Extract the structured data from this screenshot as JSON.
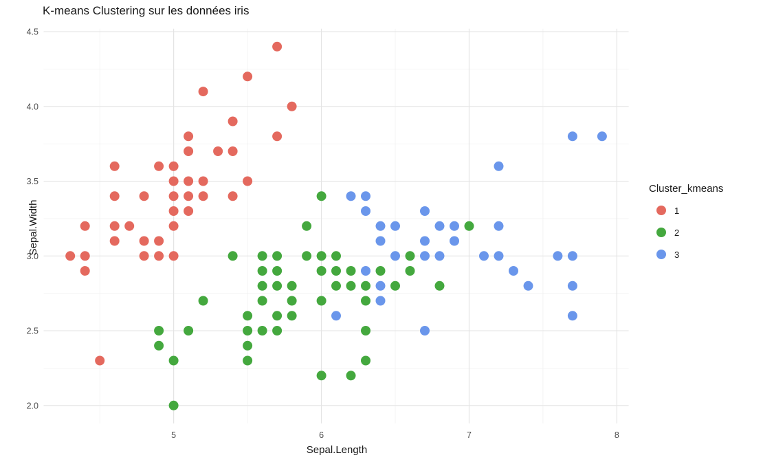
{
  "chart_data": {
    "type": "scatter",
    "title": "K-means Clustering sur les données iris",
    "xlabel": "Sepal.Length",
    "ylabel": "Sepal.Width",
    "x_range": [
      4.12,
      8.08
    ],
    "y_range": [
      1.88,
      4.52
    ],
    "x_ticks": [
      5,
      6,
      7,
      8
    ],
    "x_tick_labels": [
      "5",
      "6",
      "7",
      "8"
    ],
    "y_ticks": [
      2.0,
      2.5,
      3.0,
      3.5,
      4.0,
      4.5
    ],
    "y_tick_labels": [
      "2.0",
      "2.5",
      "3.0",
      "3.5",
      "4.0",
      "4.5"
    ],
    "x_minor": [
      4.5,
      5.5,
      6.5,
      7.5
    ],
    "y_minor": [
      2.25,
      2.75,
      3.25,
      3.75,
      4.25
    ],
    "grid": "on",
    "legend_position": "right",
    "legend": {
      "title": "Cluster_kmeans",
      "entries": [
        {
          "label": "1",
          "color": "#E4695E"
        },
        {
          "label": "2",
          "color": "#44A83E"
        },
        {
          "label": "3",
          "color": "#6A96EB"
        }
      ]
    },
    "colors": {
      "cluster1": "#E4695E",
      "cluster2": "#44A83E",
      "cluster3": "#6A96EB",
      "grid_major": "#E4E4E4",
      "grid_minor": "#EFEFEF",
      "tick_label": "#4d4d4d"
    },
    "point_radius": 7,
    "series": [
      {
        "name": "1",
        "color": "#E4695E",
        "points": [
          [
            4.3,
            3.0
          ],
          [
            4.4,
            2.9
          ],
          [
            4.4,
            3.0
          ],
          [
            4.4,
            3.2
          ],
          [
            4.5,
            2.3
          ],
          [
            4.6,
            3.1
          ],
          [
            4.6,
            3.2
          ],
          [
            4.6,
            3.4
          ],
          [
            4.6,
            3.6
          ],
          [
            4.7,
            3.2
          ],
          [
            4.8,
            3.0
          ],
          [
            4.8,
            3.1
          ],
          [
            4.8,
            3.4
          ],
          [
            4.9,
            3.0
          ],
          [
            4.9,
            3.1
          ],
          [
            4.9,
            3.6
          ],
          [
            5.0,
            3.0
          ],
          [
            5.0,
            3.2
          ],
          [
            5.0,
            3.3
          ],
          [
            5.0,
            3.4
          ],
          [
            5.0,
            3.5
          ],
          [
            5.0,
            3.6
          ],
          [
            5.1,
            3.3
          ],
          [
            5.1,
            3.4
          ],
          [
            5.1,
            3.5
          ],
          [
            5.1,
            3.7
          ],
          [
            5.1,
            3.8
          ],
          [
            5.2,
            3.4
          ],
          [
            5.2,
            3.5
          ],
          [
            5.2,
            4.1
          ],
          [
            5.3,
            3.7
          ],
          [
            5.4,
            3.4
          ],
          [
            5.4,
            3.7
          ],
          [
            5.4,
            3.9
          ],
          [
            5.5,
            3.5
          ],
          [
            5.5,
            4.2
          ],
          [
            5.7,
            3.8
          ],
          [
            5.7,
            4.4
          ],
          [
            5.8,
            4.0
          ]
        ]
      },
      {
        "name": "2",
        "color": "#44A83E",
        "points": [
          [
            4.9,
            2.4
          ],
          [
            4.9,
            2.5
          ],
          [
            5.0,
            2.0
          ],
          [
            5.0,
            2.3
          ],
          [
            5.1,
            2.5
          ],
          [
            5.2,
            2.7
          ],
          [
            5.4,
            3.0
          ],
          [
            5.5,
            2.3
          ],
          [
            5.5,
            2.4
          ],
          [
            5.5,
            2.5
          ],
          [
            5.5,
            2.6
          ],
          [
            5.6,
            2.5
          ],
          [
            5.6,
            2.7
          ],
          [
            5.6,
            2.8
          ],
          [
            5.6,
            2.9
          ],
          [
            5.6,
            3.0
          ],
          [
            5.7,
            2.5
          ],
          [
            5.7,
            2.6
          ],
          [
            5.7,
            2.8
          ],
          [
            5.7,
            2.9
          ],
          [
            5.7,
            3.0
          ],
          [
            5.8,
            2.6
          ],
          [
            5.8,
            2.7
          ],
          [
            5.8,
            2.8
          ],
          [
            5.9,
            3.0
          ],
          [
            5.9,
            3.2
          ],
          [
            6.0,
            2.2
          ],
          [
            6.0,
            2.7
          ],
          [
            6.0,
            2.9
          ],
          [
            6.0,
            3.0
          ],
          [
            6.0,
            3.4
          ],
          [
            6.1,
            2.8
          ],
          [
            6.1,
            2.9
          ],
          [
            6.1,
            3.0
          ],
          [
            6.2,
            2.2
          ],
          [
            6.2,
            2.8
          ],
          [
            6.2,
            2.9
          ],
          [
            6.3,
            2.3
          ],
          [
            6.3,
            2.5
          ],
          [
            6.3,
            2.7
          ],
          [
            6.3,
            2.8
          ],
          [
            6.4,
            2.9
          ],
          [
            6.5,
            2.8
          ],
          [
            6.6,
            2.9
          ],
          [
            6.6,
            3.0
          ],
          [
            6.8,
            2.8
          ],
          [
            7.0,
            3.2
          ]
        ]
      },
      {
        "name": "3",
        "color": "#6A96EB",
        "points": [
          [
            6.1,
            2.6
          ],
          [
            6.2,
            3.4
          ],
          [
            6.3,
            2.9
          ],
          [
            6.3,
            3.3
          ],
          [
            6.3,
            3.4
          ],
          [
            6.4,
            2.7
          ],
          [
            6.4,
            2.8
          ],
          [
            6.4,
            3.1
          ],
          [
            6.4,
            3.2
          ],
          [
            6.5,
            3.0
          ],
          [
            6.5,
            3.2
          ],
          [
            6.7,
            2.5
          ],
          [
            6.7,
            3.0
          ],
          [
            6.7,
            3.1
          ],
          [
            6.7,
            3.3
          ],
          [
            6.8,
            3.0
          ],
          [
            6.8,
            3.2
          ],
          [
            6.9,
            3.1
          ],
          [
            6.9,
            3.2
          ],
          [
            7.1,
            3.0
          ],
          [
            7.2,
            3.0
          ],
          [
            7.2,
            3.2
          ],
          [
            7.2,
            3.6
          ],
          [
            7.3,
            2.9
          ],
          [
            7.4,
            2.8
          ],
          [
            7.6,
            3.0
          ],
          [
            7.7,
            2.6
          ],
          [
            7.7,
            2.8
          ],
          [
            7.7,
            3.0
          ],
          [
            7.7,
            3.8
          ],
          [
            7.9,
            3.8
          ]
        ]
      }
    ]
  }
}
